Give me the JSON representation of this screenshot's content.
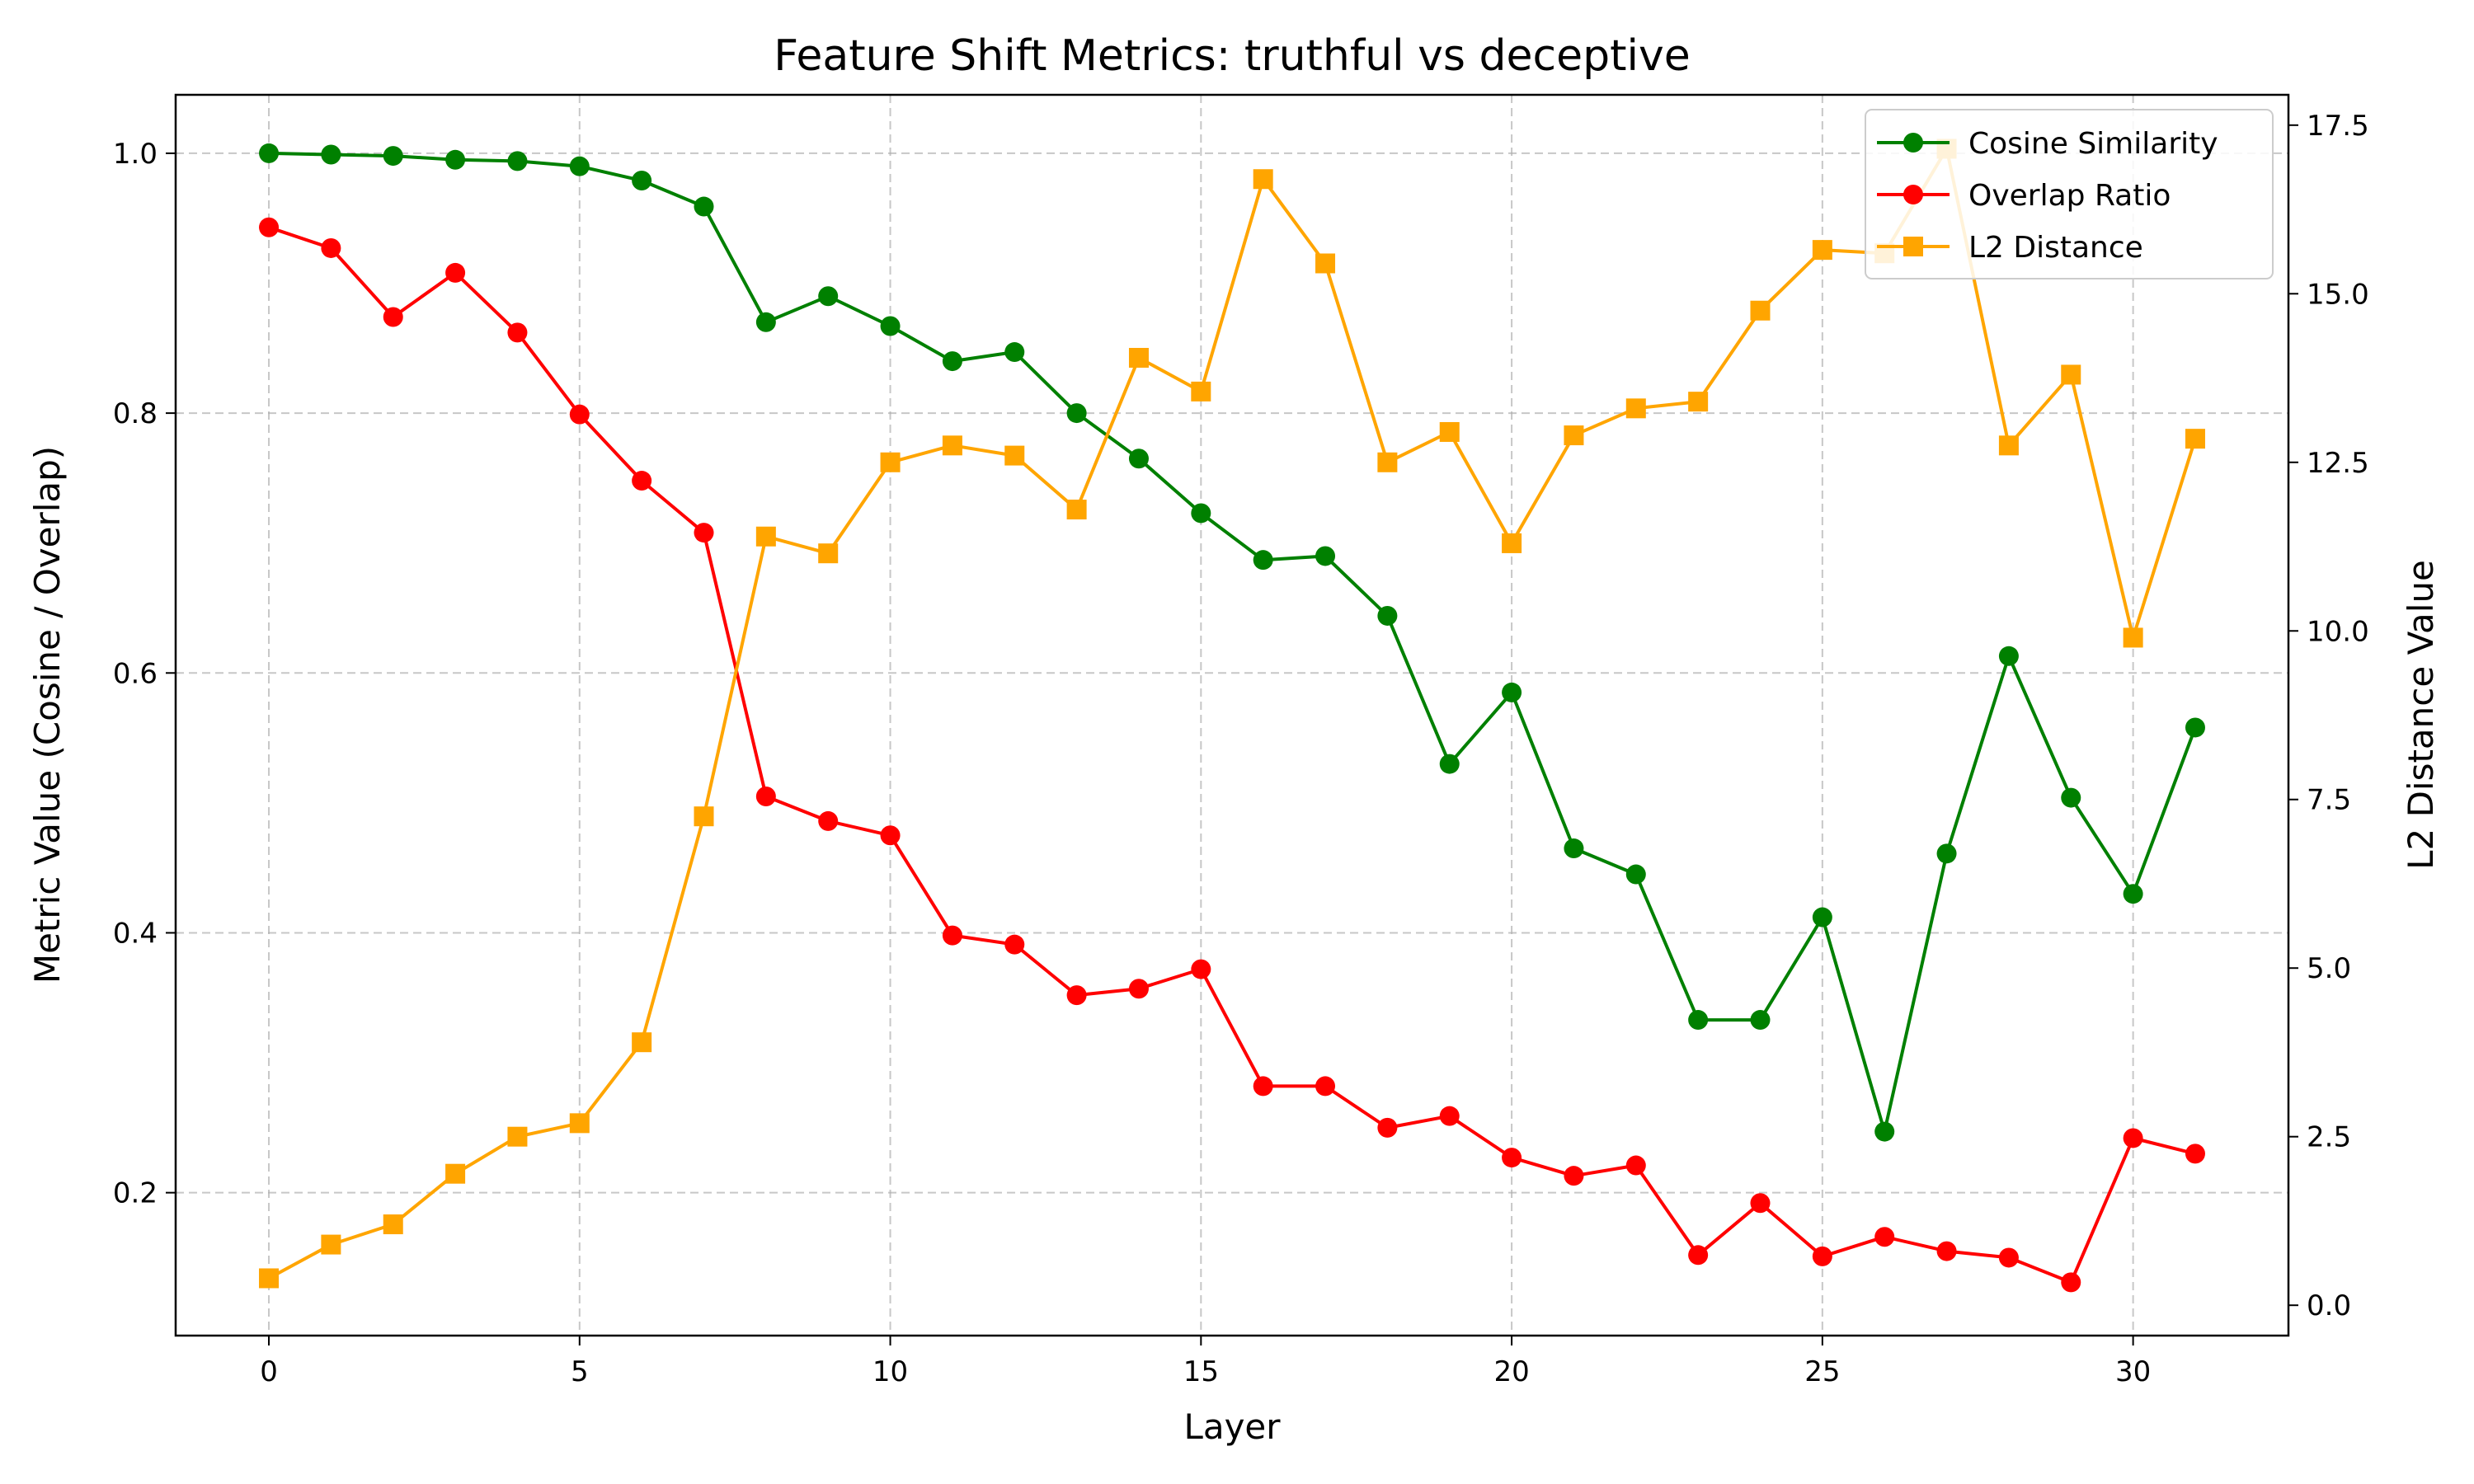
{
  "chart_data": {
    "type": "line",
    "title": "Feature Shift Metrics: truthful vs deceptive",
    "xlabel": "Layer",
    "ylabel_left": "Metric Value (Cosine / Overlap)",
    "ylabel_right": "L2 Distance Value",
    "xlim": [
      -1.5,
      32.5
    ],
    "ylim_left": [
      0.09,
      1.045
    ],
    "ylim_right": [
      -0.45,
      17.95
    ],
    "xticks": [
      0,
      5,
      10,
      15,
      20,
      25,
      30
    ],
    "yticks_left": [
      0.2,
      0.4,
      0.6,
      0.8,
      1.0
    ],
    "yticks_right": [
      0.0,
      2.5,
      5.0,
      7.5,
      10.0,
      12.5,
      15.0,
      17.5
    ],
    "grid": true,
    "legend_position": "top-right",
    "x": [
      0,
      1,
      2,
      3,
      4,
      5,
      6,
      7,
      8,
      9,
      10,
      11,
      12,
      13,
      14,
      15,
      16,
      17,
      18,
      19,
      20,
      21,
      22,
      23,
      24,
      25,
      26,
      27,
      28,
      29,
      30,
      31
    ],
    "series": [
      {
        "name": "Cosine Similarity",
        "axis": "left",
        "color": "#008000",
        "marker": "circle",
        "values": [
          1.0,
          0.999,
          0.998,
          0.995,
          0.994,
          0.99,
          0.979,
          0.959,
          0.87,
          0.89,
          0.867,
          0.84,
          0.847,
          0.8,
          0.765,
          0.723,
          0.687,
          0.69,
          0.644,
          0.53,
          0.585,
          0.465,
          0.445,
          0.333,
          0.333,
          0.412,
          0.247,
          0.461,
          0.613,
          0.504,
          0.43,
          0.558
        ]
      },
      {
        "name": "Overlap Ratio",
        "axis": "left",
        "color": "#ff0000",
        "marker": "circle",
        "values": [
          0.943,
          0.927,
          0.874,
          0.908,
          0.862,
          0.799,
          0.748,
          0.708,
          0.505,
          0.486,
          0.475,
          0.398,
          0.391,
          0.352,
          0.357,
          0.372,
          0.282,
          0.282,
          0.25,
          0.259,
          0.227,
          0.213,
          0.221,
          0.152,
          0.192,
          0.151,
          0.166,
          0.155,
          0.15,
          0.131,
          0.242,
          0.23
        ]
      },
      {
        "name": "L2 Distance",
        "axis": "right",
        "color": "#ffa500",
        "marker": "square",
        "values": [
          0.4,
          0.9,
          1.2,
          1.95,
          2.5,
          2.7,
          3.9,
          7.25,
          11.4,
          11.15,
          12.5,
          12.75,
          12.6,
          11.8,
          14.05,
          13.55,
          16.7,
          15.45,
          12.5,
          12.95,
          11.3,
          12.9,
          13.3,
          13.4,
          14.75,
          15.65,
          15.6,
          17.15,
          12.75,
          13.8,
          9.9,
          12.85
        ]
      }
    ]
  }
}
